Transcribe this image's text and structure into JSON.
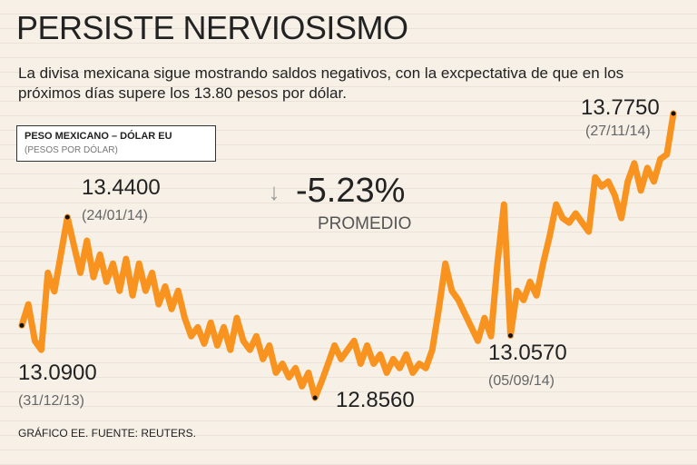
{
  "chart_data": {
    "type": "line",
    "title": "PERSISTE NERVIOSISMO",
    "subtitle": "La divisa mexicana sigue mostrando saldos negativos, con la excpectativa de que en los próximos días supere los 13.80 pesos por dólar.",
    "legend_title": "PESO MEXICANO – DÓLAR EU",
    "legend_subtitle": "(PESOS POR DÓLAR)",
    "annotation": {
      "symbol": "↓",
      "value": "-5.23%",
      "label": "PROMEDIO"
    },
    "source": "GRÁFICO EE. FUENTE: REUTERS.",
    "color": "#f7931e",
    "categories": [
      "(31/12/13)",
      null,
      null,
      null,
      null,
      null,
      null,
      "(24/01/14)",
      null,
      null,
      null,
      null,
      null,
      null,
      null,
      null,
      null,
      null,
      null,
      null,
      null,
      null,
      null,
      null,
      null,
      null,
      null,
      null,
      null,
      null,
      null,
      null,
      null,
      null,
      null,
      null,
      null,
      null,
      null,
      null,
      null,
      null,
      null,
      null,
      null,
      null,
      null,
      null,
      null,
      null,
      null,
      null,
      null,
      null,
      null,
      null,
      null,
      null,
      null,
      null,
      null,
      null,
      null,
      null,
      null,
      null,
      null,
      null,
      null,
      null,
      null,
      null,
      null,
      null,
      null,
      "(05/09/14)",
      null,
      null,
      null,
      null,
      null,
      null,
      null,
      null,
      null,
      null,
      null,
      null,
      null,
      null,
      null,
      null,
      null,
      null,
      null,
      null,
      null,
      null,
      null,
      null,
      "(27/11/14)"
    ],
    "values": [
      13.09,
      13.158,
      13.04,
      13.011,
      13.26,
      13.2,
      13.32,
      13.44,
      13.349,
      13.26,
      13.364,
      13.246,
      13.319,
      13.231,
      13.29,
      13.202,
      13.305,
      13.187,
      13.29,
      13.202,
      13.26,
      13.158,
      13.216,
      13.143,
      13.202,
      13.114,
      13.055,
      13.084,
      13.031,
      13.099,
      13.025,
      13.084,
      13.011,
      13.114,
      13.04,
      13.011,
      13.055,
      12.981,
      13.025,
      12.937,
      12.966,
      12.922,
      12.952,
      12.893,
      12.937,
      12.856,
      12.908,
      12.966,
      13.025,
      12.981,
      13.011,
      13.04,
      12.966,
      13.025,
      12.966,
      12.996,
      12.937,
      12.981,
      12.952,
      12.996,
      12.937,
      12.966,
      12.952,
      13.011,
      13.143,
      13.29,
      13.202,
      13.172,
      13.128,
      13.084,
      13.04,
      13.114,
      13.055,
      13.29,
      13.481,
      13.057,
      13.202,
      13.172,
      13.231,
      13.187,
      13.29,
      13.378,
      13.481,
      13.437,
      13.422,
      13.452,
      13.422,
      13.393,
      13.569,
      13.539,
      13.555,
      13.511,
      13.437,
      13.555,
      13.614,
      13.526,
      13.599,
      13.555,
      13.628,
      13.643,
      13.775
    ],
    "value_labels": [
      "13.0900",
      null,
      null,
      null,
      null,
      null,
      null,
      "13.4400",
      null,
      null,
      null,
      null,
      null,
      null,
      null,
      null,
      null,
      null,
      null,
      null,
      null,
      null,
      null,
      null,
      null,
      null,
      null,
      null,
      null,
      null,
      null,
      null,
      null,
      null,
      null,
      null,
      null,
      null,
      null,
      null,
      null,
      null,
      null,
      null,
      null,
      "12.8560",
      null,
      null,
      null,
      null,
      null,
      null,
      null,
      null,
      null,
      null,
      null,
      null,
      null,
      null,
      null,
      null,
      null,
      null,
      null,
      null,
      null,
      null,
      null,
      null,
      null,
      null,
      null,
      null,
      null,
      "13.0570",
      null,
      null,
      null,
      null,
      null,
      null,
      null,
      null,
      null,
      null,
      null,
      null,
      null,
      null,
      null,
      null,
      null,
      null,
      null,
      null,
      null,
      null,
      null,
      null,
      "13.7750"
    ]
  }
}
